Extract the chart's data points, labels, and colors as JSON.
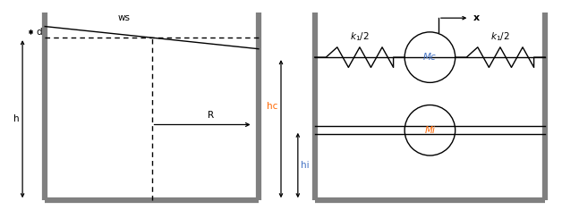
{
  "fig_width": 6.28,
  "fig_height": 2.35,
  "bg_color": "#ffffff",
  "wall_color": "#808080",
  "line_color": "#000000",
  "mc_color": "#4472C4",
  "mi_color": "#FF6600",
  "hc_color": "#FF6600",
  "hi_color": "#4472C4",
  "label_ws": "ws",
  "label_d": "d",
  "label_h": "h",
  "label_R": "R",
  "label_hc": "hc",
  "label_hi": "hi",
  "label_Mc": "Mc",
  "label_Mi": "Mi",
  "label_x": "x"
}
